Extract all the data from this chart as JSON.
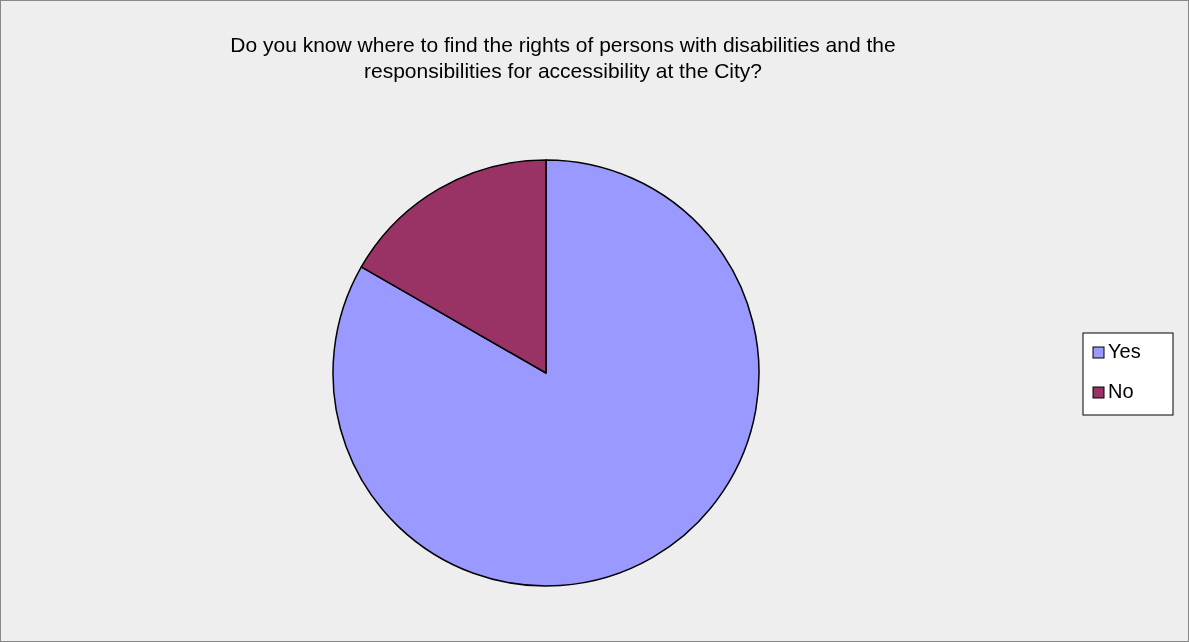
{
  "chart_data": {
    "type": "pie",
    "title": "Do you know where to find the rights of persons with disabilities and the responsibilities for accessibility at the City?",
    "categories": [
      "Yes",
      "No"
    ],
    "values": [
      83.3,
      16.7
    ],
    "colors": [
      "#9999ff",
      "#993366"
    ],
    "legend": "right"
  }
}
